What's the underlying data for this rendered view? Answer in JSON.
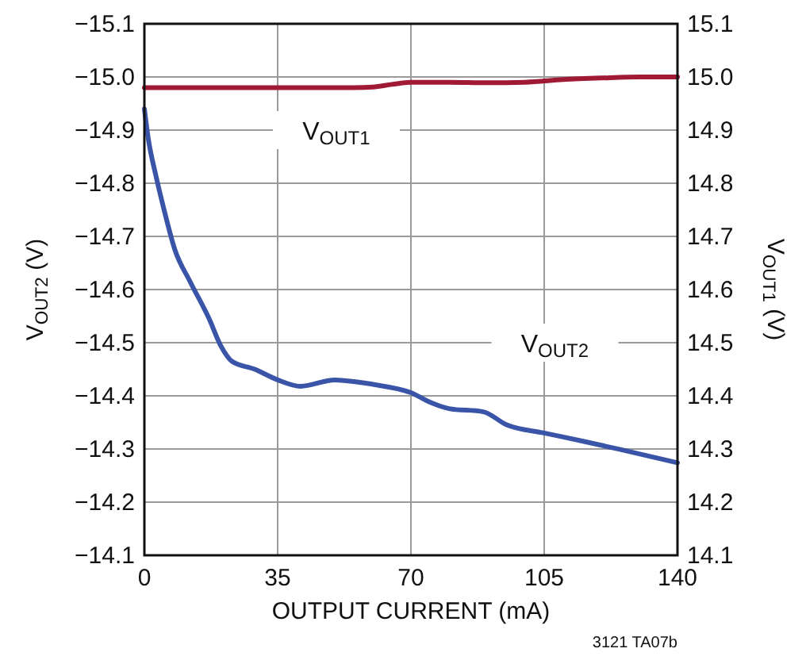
{
  "chart_data": {
    "type": "line",
    "x": [
      0,
      1,
      3,
      5,
      8,
      12,
      17,
      20,
      23,
      29,
      35,
      41,
      50,
      57,
      63,
      70,
      75,
      80,
      89,
      95,
      105,
      115,
      125,
      140
    ],
    "xlabel": "OUTPUT CURRENT (mA)",
    "ylabel": "V$_{OUT2}$ (V)",
    "y2label": "V$_{OUT1}$ (V)",
    "xlim": [
      0,
      140
    ],
    "xticks": [
      0,
      35,
      70,
      105,
      140
    ],
    "ylim": [
      -14.1,
      -15.1
    ],
    "yticks": [
      {
        "value": -15.1,
        "label": "−15.1"
      },
      {
        "value": -15.0,
        "label": "−15.0"
      },
      {
        "value": -14.9,
        "label": "−14.9"
      },
      {
        "value": -14.8,
        "label": "−14.8"
      },
      {
        "value": -14.7,
        "label": "−14.7"
      },
      {
        "value": -14.6,
        "label": "−14.6"
      },
      {
        "value": -14.5,
        "label": "−14.5"
      },
      {
        "value": -14.4,
        "label": "−14.4"
      },
      {
        "value": -14.3,
        "label": "−14.3"
      },
      {
        "value": -14.2,
        "label": "−14.2"
      },
      {
        "value": -14.1,
        "label": "−14.1"
      }
    ],
    "y2lim": [
      14.1,
      15.1
    ],
    "y2ticks": [
      {
        "value": 15.1,
        "label": "15.1"
      },
      {
        "value": 15.0,
        "label": "15.0"
      },
      {
        "value": 14.9,
        "label": "14.9"
      },
      {
        "value": 14.8,
        "label": "14.8"
      },
      {
        "value": 14.7,
        "label": "14.7"
      },
      {
        "value": 14.6,
        "label": "14.6"
      },
      {
        "value": 14.5,
        "label": "14.5"
      },
      {
        "value": 14.4,
        "label": "14.4"
      },
      {
        "value": 14.3,
        "label": "14.3"
      },
      {
        "value": 14.2,
        "label": "14.2"
      },
      {
        "value": 14.1,
        "label": "14.1"
      }
    ],
    "grid": true,
    "series": [
      {
        "name": "V$_{OUT1}$",
        "color": "#a01a35",
        "axis": "y2",
        "x": [
          0,
          20,
          40,
          55,
          60,
          65,
          70,
          80,
          90,
          100,
          110,
          120,
          130,
          140
        ],
        "values": [
          14.98,
          14.98,
          14.98,
          14.98,
          14.981,
          14.986,
          14.99,
          14.99,
          14.989,
          14.99,
          14.995,
          14.998,
          15.0,
          15.0
        ]
      },
      {
        "name": "V$_{OUT2}$",
        "color": "#3a55a8",
        "values": [
          -14.94,
          -14.885,
          -14.815,
          -14.755,
          -14.675,
          -14.615,
          -14.545,
          -14.495,
          -14.465,
          -14.45,
          -14.43,
          -14.418,
          -14.43,
          -14.425,
          -14.418,
          -14.406,
          -14.388,
          -14.376,
          -14.37,
          -14.346,
          -14.33,
          -14.315,
          -14.299,
          -14.274
        ]
      }
    ],
    "annotations": [
      "3121 TA07b"
    ]
  }
}
